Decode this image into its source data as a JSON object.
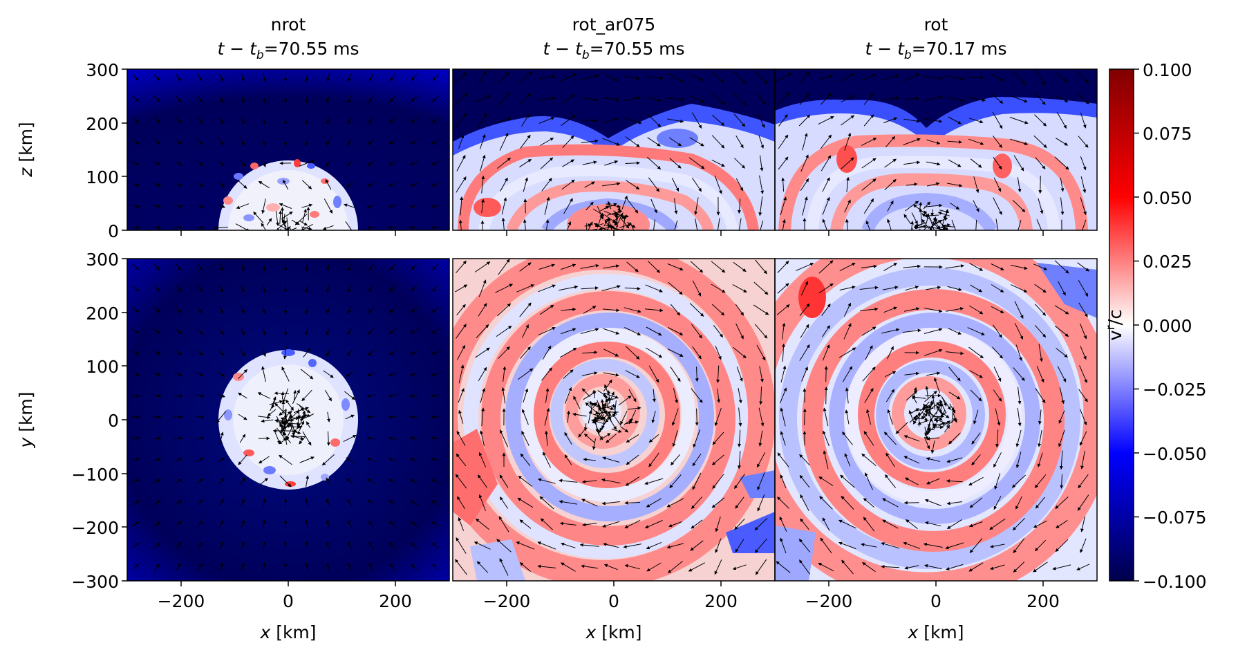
{
  "chart_data": [
    {
      "type": "heatmap",
      "panel": "top-left",
      "title": "nrot",
      "subtitle": "t − t_b=70.55 ms",
      "ylabel": "z [km]",
      "xlim": [
        -300,
        300
      ],
      "ylim": [
        0,
        300
      ],
      "yticks": [
        0,
        100,
        200,
        300
      ],
      "colormap": "seismic",
      "features": {
        "shock_radius_km": 130,
        "inside": "mixed blue/white with red spots",
        "outside": "deep blue infall",
        "arrows": "radially inward outside shock, turbulent inside"
      }
    },
    {
      "type": "heatmap",
      "panel": "top-middle",
      "title": "rot_ar075",
      "subtitle": "t − t_b=70.55 ms",
      "xlim": [
        -300,
        300
      ],
      "ylim": [
        0,
        300
      ],
      "features": {
        "shock_height_km": 200,
        "inside": "alternating red/white/blue bands",
        "outside": "deep blue near top"
      }
    },
    {
      "type": "heatmap",
      "panel": "top-right",
      "title": "rot",
      "subtitle": "t − t_b=70.17 ms",
      "xlim": [
        -300,
        300
      ],
      "ylim": [
        0,
        300
      ],
      "features": {
        "shock_height_km": 240,
        "inside": "alternating red/white/blue bands",
        "outside": "deep blue near top"
      }
    },
    {
      "type": "heatmap",
      "panel": "bottom-left",
      "xlabel": "x [km]",
      "ylabel": "y [km]",
      "xlim": [
        -300,
        300
      ],
      "ylim": [
        -300,
        300
      ],
      "xticks": [
        -200,
        0,
        200
      ],
      "yticks": [
        -300,
        -200,
        -100,
        0,
        100,
        200,
        300
      ],
      "features": {
        "shock_radius_km": 130,
        "inside": "mixed blue/white with red spots",
        "outside": "deep blue infall"
      }
    },
    {
      "type": "heatmap",
      "panel": "bottom-middle",
      "xlabel": "x [km]",
      "xlim": [
        -300,
        300
      ],
      "ylim": [
        -300,
        300
      ],
      "xticks": [
        -200,
        0,
        200
      ],
      "features": {
        "pattern": "spiral rings red/blue",
        "arrows": "counter-clockwise rotation"
      }
    },
    {
      "type": "heatmap",
      "panel": "bottom-right",
      "xlabel": "x [km]",
      "xlim": [
        -300,
        300
      ],
      "ylim": [
        -300,
        300
      ],
      "xticks": [
        -200,
        0,
        200
      ],
      "features": {
        "pattern": "spiral rings red/blue",
        "arrows": "counter-clockwise rotation"
      }
    }
  ],
  "colorbar": {
    "label": "v^r/c",
    "min": -0.1,
    "max": 0.1,
    "tick_labels": [
      "0.100",
      "0.075",
      "0.050",
      "0.025",
      "0.000",
      "−0.025",
      "−0.050",
      "−0.075",
      "−0.100"
    ],
    "colors": [
      "#00004c",
      "#0000ff",
      "#ffffff",
      "#ff0000",
      "#800000"
    ]
  },
  "labels": {
    "titles": [
      "nrot",
      "rot_ar075",
      "rot"
    ],
    "times": [
      "70.55 ms",
      "70.55 ms",
      "70.17 ms"
    ],
    "z_label": "z [km]",
    "y_label": "y [km]",
    "x_label": "x [km]",
    "cbar_label": "v",
    "cbar_sup": "r",
    "cbar_tail": "/c"
  },
  "axis_ticks": {
    "x": [
      "−200",
      "0",
      "200"
    ],
    "z": [
      "300",
      "200",
      "100",
      "0"
    ],
    "y": [
      "300",
      "200",
      "100",
      "0",
      "−100",
      "−200",
      "−300"
    ]
  }
}
